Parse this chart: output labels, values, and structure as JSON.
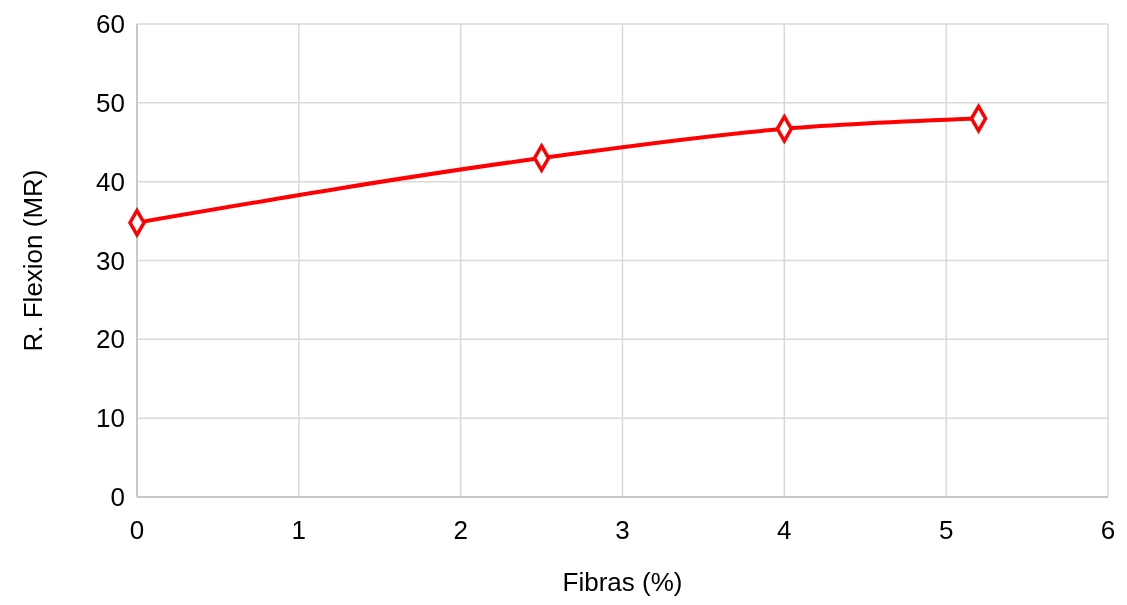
{
  "chart_data": {
    "type": "line",
    "xlabel": "Fibras (%)",
    "ylabel": "R. Flexion (MR)",
    "x": [
      0,
      2.5,
      4,
      5.2
    ],
    "series": [
      {
        "color": "#ff0000",
        "values": [
          34.8,
          43.0,
          46.7,
          48.0
        ]
      }
    ],
    "xlim": [
      0,
      6
    ],
    "xticks": [
      0,
      1,
      2,
      3,
      4,
      5,
      6
    ],
    "ylim": [
      0,
      60
    ],
    "yticks": [
      0,
      10,
      20,
      30,
      40,
      50,
      60
    ],
    "grid": true,
    "marker": "diamond",
    "line_style": "solid"
  }
}
